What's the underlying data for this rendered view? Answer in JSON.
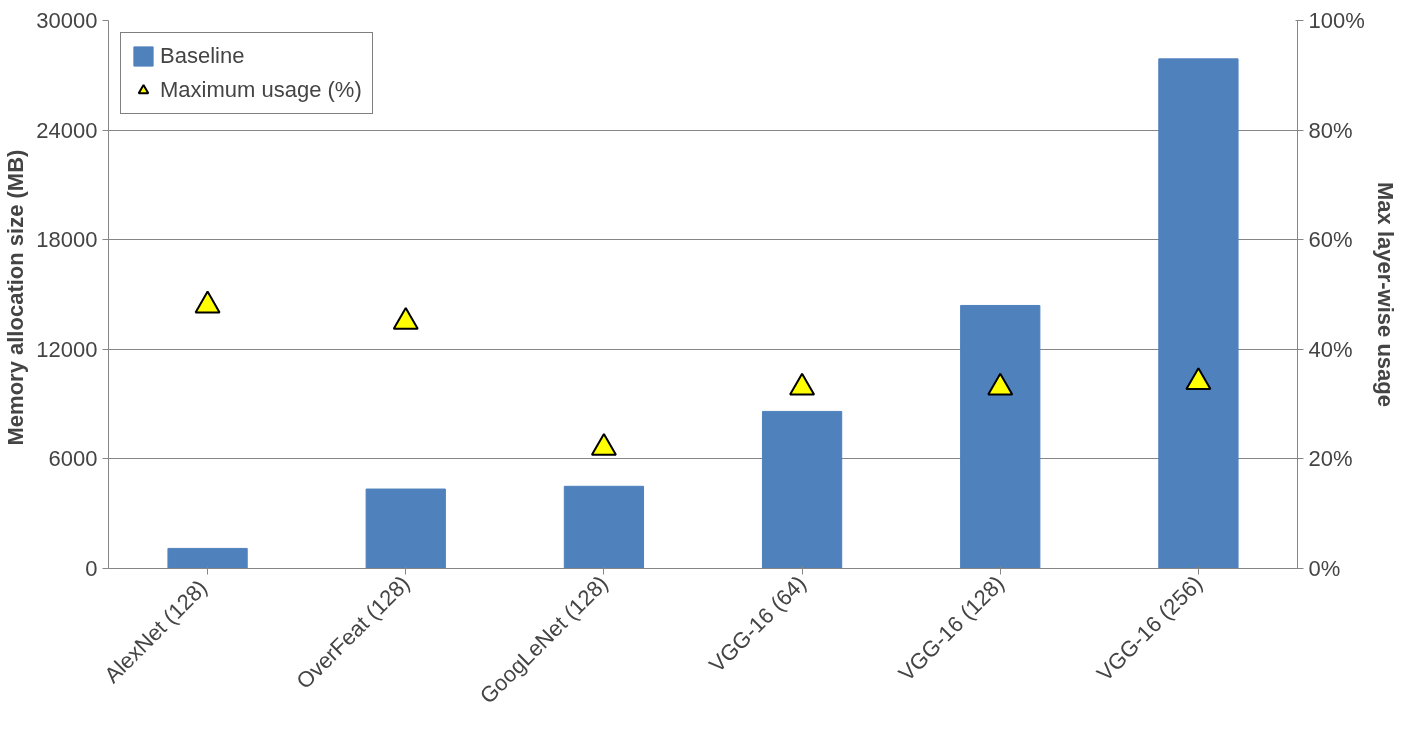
{
  "chart_data": {
    "type": "bar",
    "ylabel": "Memory allocation size  (MB)",
    "y2label": "Max layer-wise usage",
    "categories": [
      "AlexNet  (128)",
      "OverFeat (128)",
      "GoogLeNet (128)",
      "VGG-16 (64)",
      "VGG-16 (128)",
      "VGG-16 (256)"
    ],
    "series": [
      {
        "name": "Baseline",
        "color": "#4f81bd",
        "values": [
          1100,
          4350,
          4500,
          8600,
          14400,
          27900
        ]
      },
      {
        "name": "Maximum usage (%)",
        "type": "scatter",
        "axis": "y2",
        "marker": "triangle",
        "color": "#ffff00",
        "values": [
          48,
          45,
          22,
          33,
          33,
          34
        ]
      }
    ],
    "ylim": [
      0,
      30000
    ],
    "yticks": [
      0,
      6000,
      12000,
      18000,
      24000,
      30000
    ],
    "y2lim": [
      0,
      100
    ],
    "y2ticks": [
      {
        "value": 0,
        "label": "0%"
      },
      {
        "value": 20,
        "label": "20%"
      },
      {
        "value": 40,
        "label": "40%"
      },
      {
        "value": 60,
        "label": "60%"
      },
      {
        "value": 80,
        "label": "80%"
      },
      {
        "value": 100,
        "label": "100%"
      }
    ],
    "grid": "y",
    "legend": "top left"
  }
}
